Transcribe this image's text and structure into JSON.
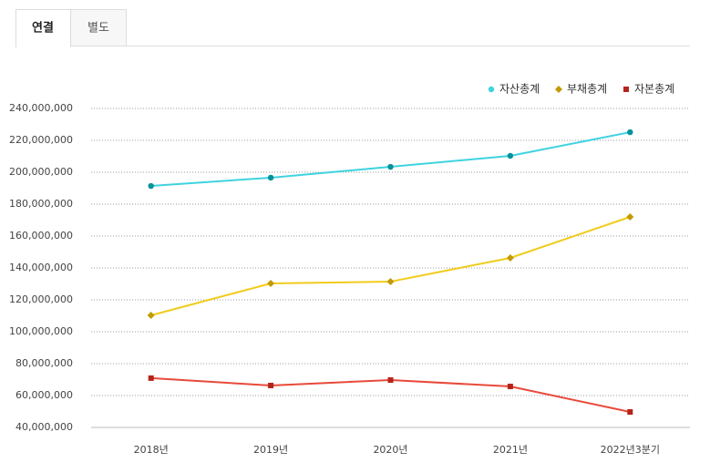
{
  "tabs": [
    "연결",
    "별도"
  ],
  "chart_data": {
    "type": "line",
    "categories": [
      "2018년",
      "2019년",
      "2020년",
      "2021년",
      "2022년3분기"
    ],
    "series": [
      {
        "name": "자산총계",
        "color": "#3fd3e0",
        "marker_color": "#00939b",
        "marker": "circle",
        "values": [
          191400000,
          196600000,
          203400000,
          210300000,
          225100000
        ]
      },
      {
        "name": "부채총계",
        "color": "#f0cc1c",
        "marker_color": "#c29a00",
        "marker": "diamond",
        "values": [
          110300000,
          130300000,
          131400000,
          146300000,
          172000000
        ]
      },
      {
        "name": "자본총계",
        "color": "#e84a3a",
        "marker_color": "#b5231a",
        "marker": "square",
        "values": [
          70900000,
          66300000,
          69700000,
          65700000,
          49700000
        ]
      }
    ],
    "ylim": [
      40000000,
      240000000
    ],
    "yticks": [
      {
        "value": 40000000,
        "label": "40,000,000"
      },
      {
        "value": 60000000,
        "label": "60,000,000"
      },
      {
        "value": 80000000,
        "label": "80,000,000"
      },
      {
        "value": 100000000,
        "label": "100,000,000"
      },
      {
        "value": 120000000,
        "label": "120,000,000"
      },
      {
        "value": 140000000,
        "label": "140,000,000"
      },
      {
        "value": 160000000,
        "label": "160,000,000"
      },
      {
        "value": 180000000,
        "label": "180,000,000"
      },
      {
        "value": 200000000,
        "label": "200,000,000"
      },
      {
        "value": 220000000,
        "label": "220,000,000"
      },
      {
        "value": 240000000,
        "label": "240,000,000"
      }
    ],
    "grid": true,
    "legend": "top-right"
  }
}
